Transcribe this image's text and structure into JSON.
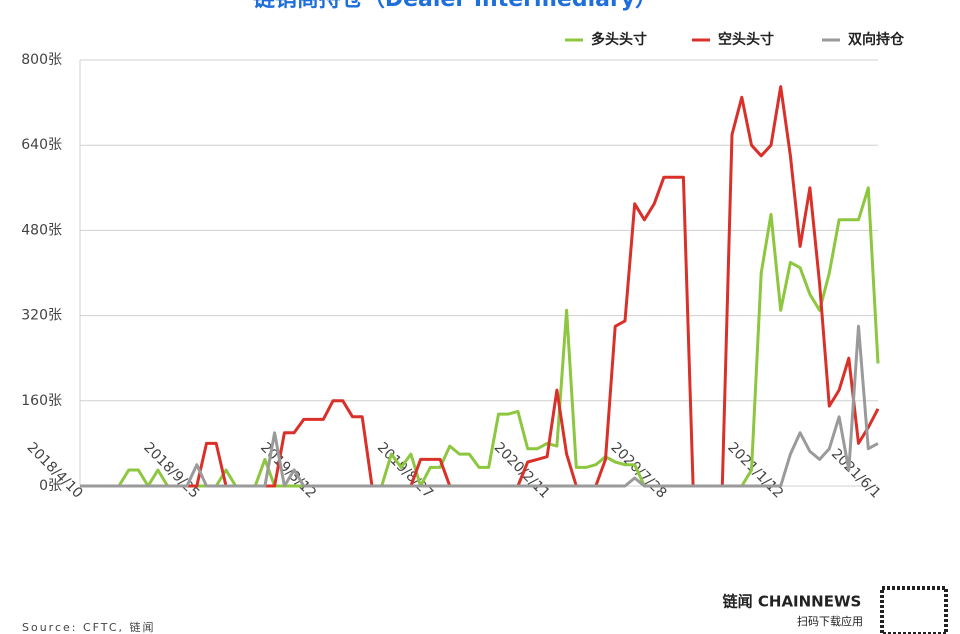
{
  "chart_data": {
    "type": "line",
    "title": "链销商持仓（Dealer Intermediary）",
    "source": "Source: CFTC, 链闻",
    "brand": "链闻 CHAINNEWS",
    "brand_sub": "扫码下载应用",
    "categories": [
      "2018/4/10",
      null,
      null,
      null,
      null,
      null,
      null,
      null,
      null,
      null,
      null,
      null,
      "2018/9/25",
      null,
      null,
      null,
      null,
      null,
      null,
      null,
      null,
      null,
      null,
      null,
      "2019/3/12",
      null,
      null,
      null,
      null,
      null,
      null,
      null,
      null,
      null,
      null,
      null,
      "2019/8/27",
      null,
      null,
      null,
      null,
      null,
      null,
      null,
      null,
      null,
      null,
      null,
      "2020/2/11",
      null,
      null,
      null,
      null,
      null,
      null,
      null,
      null,
      null,
      null,
      null,
      "2020/7/28",
      null,
      null,
      null,
      null,
      null,
      null,
      null,
      null,
      null,
      null,
      null,
      "2021/1/12",
      null,
      null,
      null,
      null,
      null,
      null,
      null,
      null,
      null,
      "2021/6/1"
    ],
    "series": [
      {
        "name": "多头头寸",
        "color": "#8dc63f",
        "values": [
          0,
          0,
          0,
          0,
          0,
          30,
          30,
          0,
          30,
          0,
          0,
          0,
          0,
          0,
          0,
          30,
          0,
          0,
          0,
          50,
          0,
          0,
          0,
          0,
          0,
          0,
          0,
          0,
          0,
          0,
          0,
          0,
          60,
          35,
          60,
          0,
          35,
          35,
          75,
          60,
          60,
          35,
          35,
          135,
          135,
          140,
          70,
          70,
          80,
          75,
          330,
          35,
          35,
          40,
          55,
          45,
          40,
          40,
          0,
          0,
          0,
          0,
          0,
          0,
          0,
          0,
          0,
          0,
          0,
          30,
          400,
          510,
          330,
          420,
          410,
          360,
          330,
          400,
          500,
          500,
          500,
          560,
          230
        ]
      },
      {
        "name": "空头头寸",
        "color": "#d9302a",
        "values": [
          0,
          0,
          0,
          0,
          0,
          0,
          0,
          0,
          0,
          0,
          0,
          0,
          0,
          80,
          80,
          0,
          0,
          0,
          0,
          0,
          0,
          100,
          100,
          125,
          125,
          125,
          160,
          160,
          130,
          130,
          0,
          0,
          0,
          0,
          0,
          50,
          50,
          50,
          0,
          0,
          0,
          0,
          0,
          0,
          0,
          0,
          45,
          50,
          55,
          180,
          60,
          0,
          0,
          0,
          50,
          300,
          310,
          530,
          500,
          530,
          580,
          580,
          580,
          0,
          0,
          0,
          0,
          660,
          730,
          640,
          620,
          640,
          750,
          620,
          450,
          560,
          380,
          150,
          180,
          240,
          80,
          110,
          145
        ]
      },
      {
        "name": "双向持仓",
        "color": "#9a9a9a",
        "values": [
          0,
          0,
          0,
          0,
          0,
          0,
          0,
          0,
          0,
          0,
          0,
          0,
          40,
          0,
          0,
          0,
          0,
          0,
          0,
          0,
          100,
          0,
          30,
          0,
          0,
          0,
          0,
          0,
          0,
          0,
          0,
          0,
          0,
          0,
          0,
          0,
          0,
          0,
          0,
          0,
          0,
          0,
          0,
          0,
          0,
          0,
          0,
          0,
          0,
          0,
          0,
          0,
          0,
          0,
          0,
          0,
          0,
          15,
          0,
          0,
          0,
          0,
          0,
          0,
          0,
          0,
          0,
          0,
          0,
          0,
          0,
          0,
          0,
          60,
          100,
          65,
          50,
          70,
          130,
          30,
          300,
          70,
          80
        ]
      }
    ],
    "ylim": [
      0,
      800
    ],
    "yticks": [
      {
        "value": 0,
        "label": "0张"
      },
      {
        "value": 160,
        "label": "160张"
      },
      {
        "value": 320,
        "label": "320张"
      },
      {
        "value": 480,
        "label": "480张"
      },
      {
        "value": 640,
        "label": "640张"
      },
      {
        "value": 800,
        "label": "800张"
      }
    ],
    "grid": true
  }
}
